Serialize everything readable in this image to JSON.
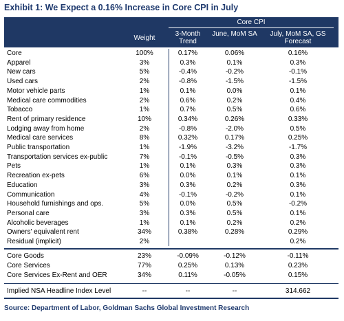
{
  "header": {
    "title": "Exhibit 1: We Expect a 0.16% Increase in Core CPI in July"
  },
  "table": {
    "group_header": "Core CPI",
    "columns": [
      "Weight",
      "3-Month Trend",
      "June, MoM SA",
      "July, MoM SA, GS Forecast"
    ],
    "rows": [
      [
        "Core",
        "100%",
        "0.17%",
        "0.06%",
        "0.16%"
      ],
      [
        "Apparel",
        "3%",
        "0.3%",
        "0.1%",
        "0.3%"
      ],
      [
        "New cars",
        "5%",
        "-0.4%",
        "-0.2%",
        "-0.1%"
      ],
      [
        "Used cars",
        "2%",
        "-0.8%",
        "-1.5%",
        "-1.5%"
      ],
      [
        "Motor vehicle parts",
        "1%",
        "0.1%",
        "0.0%",
        "0.1%"
      ],
      [
        "Medical care commodities",
        "2%",
        "0.6%",
        "0.2%",
        "0.4%"
      ],
      [
        "Tobacco",
        "1%",
        "0.7%",
        "0.5%",
        "0.6%"
      ],
      [
        "Rent of primary residence",
        "10%",
        "0.34%",
        "0.26%",
        "0.33%"
      ],
      [
        "Lodging away from home",
        "2%",
        "-0.8%",
        "-2.0%",
        "0.5%"
      ],
      [
        "Medical care services",
        "8%",
        "0.32%",
        "0.17%",
        "0.25%"
      ],
      [
        "Public transportation",
        "1%",
        "-1.9%",
        "-3.2%",
        "-1.7%"
      ],
      [
        "Transportation services ex-public",
        "7%",
        "-0.1%",
        "-0.5%",
        "0.3%"
      ],
      [
        "Pets",
        "1%",
        "0.1%",
        "0.3%",
        "0.3%"
      ],
      [
        "Recreation ex-pets",
        "6%",
        "0.0%",
        "0.1%",
        "0.1%"
      ],
      [
        "Education",
        "3%",
        "0.3%",
        "0.2%",
        "0.3%"
      ],
      [
        "Communication",
        "4%",
        "-0.1%",
        "-0.2%",
        "0.1%"
      ],
      [
        "Household furnishings and ops.",
        "5%",
        "0.0%",
        "0.5%",
        "-0.2%"
      ],
      [
        "Personal care",
        "3%",
        "0.3%",
        "0.5%",
        "0.1%"
      ],
      [
        "Alcoholic beverages",
        "1%",
        "0.1%",
        "0.2%",
        "0.2%"
      ],
      [
        "Owners' equivalent rent",
        "34%",
        "0.38%",
        "0.28%",
        "0.29%"
      ],
      [
        "Residual (implicit)",
        "2%",
        null,
        null,
        "0.2%"
      ]
    ],
    "aggregates": [
      [
        "Core Goods",
        "23%",
        "-0.09%",
        "-0.12%",
        "-0.11%"
      ],
      [
        "Core Services",
        "77%",
        "0.25%",
        "0.13%",
        "0.23%"
      ],
      [
        "Core Services Ex-Rent and OER",
        "34%",
        "0.11%",
        "-0.05%",
        "0.15%"
      ]
    ],
    "implied": [
      "Implied NSA Headline Index Level",
      "--",
      "--",
      "--",
      "314.662"
    ]
  },
  "footer": {
    "source": "Source: Department of Labor, Goldman Sachs Global Investment Research"
  }
}
